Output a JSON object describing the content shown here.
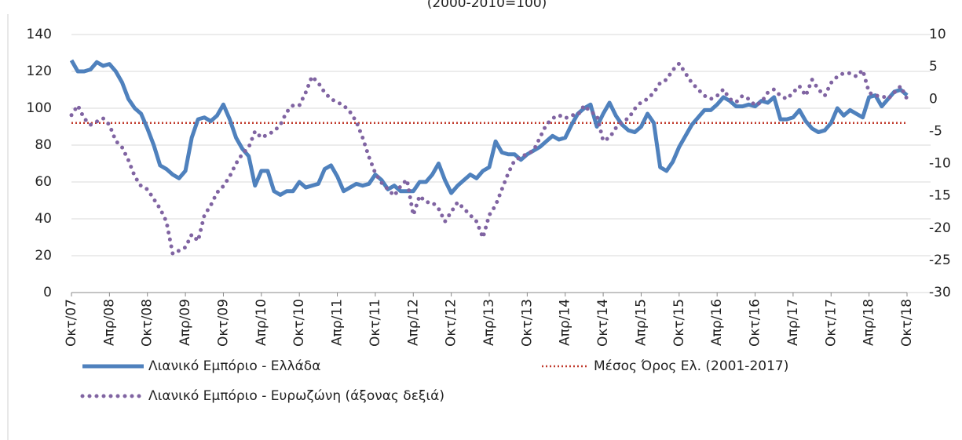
{
  "chart_data": {
    "type": "line",
    "subtitle": "(2000-2010=100)",
    "categories": [
      "Οκτ/07",
      null,
      null,
      null,
      null,
      null,
      "Απρ/08",
      null,
      null,
      null,
      null,
      null,
      "Οκτ/08",
      null,
      null,
      null,
      null,
      null,
      "Απρ/09",
      null,
      null,
      null,
      null,
      null,
      "Οκτ/09",
      null,
      null,
      null,
      null,
      null,
      "Απρ/10",
      null,
      null,
      null,
      null,
      null,
      "Οκτ/10",
      null,
      null,
      null,
      null,
      null,
      "Απρ/11",
      null,
      null,
      null,
      null,
      null,
      "Οκτ/11",
      null,
      null,
      null,
      null,
      null,
      "Απρ/12",
      null,
      null,
      null,
      null,
      null,
      "Οκτ/12",
      null,
      null,
      null,
      null,
      null,
      "Απρ/13",
      null,
      null,
      null,
      null,
      null,
      "Οκτ/13",
      null,
      null,
      null,
      null,
      null,
      "Απρ/14",
      null,
      null,
      null,
      null,
      null,
      "Οκτ/14",
      null,
      null,
      null,
      null,
      null,
      "Απρ/15",
      null,
      null,
      null,
      null,
      null,
      "Οκτ/15",
      null,
      null,
      null,
      null,
      null,
      "Απρ/16",
      null,
      null,
      null,
      null,
      null,
      "Οκτ/16",
      null,
      null,
      null,
      null,
      null,
      "Απρ/17",
      null,
      null,
      null,
      null,
      null,
      "Οκτ/17",
      null,
      null,
      null,
      null,
      null,
      "Απρ/18",
      null,
      null,
      null,
      null,
      null,
      "Οκτ/18"
    ],
    "series": [
      {
        "name": "Λιανικό Εμπόριο  - Ελλάδα",
        "color": "#4f81bd",
        "style": "solid",
        "axis": "y",
        "values": [
          126,
          120,
          120,
          121,
          125,
          123,
          124,
          120,
          114,
          105,
          100,
          97,
          89,
          80,
          69,
          67,
          64,
          62,
          66,
          84,
          94,
          95,
          93,
          96,
          102,
          94,
          84,
          78,
          74,
          58,
          66,
          66,
          55,
          53,
          55,
          55,
          60,
          57,
          58,
          59,
          67,
          69,
          63,
          55,
          57,
          59,
          58,
          59,
          64,
          61,
          56,
          58,
          55,
          55,
          55,
          60,
          60,
          64,
          70,
          61,
          54,
          58,
          61,
          64,
          62,
          66,
          68,
          82,
          76,
          75,
          75,
          72,
          75,
          77,
          79,
          82,
          85,
          83,
          84,
          91,
          97,
          100,
          102,
          90,
          97,
          103,
          96,
          91,
          88,
          87,
          90,
          97,
          92,
          68,
          66,
          71,
          79,
          85,
          91,
          95,
          99,
          99,
          102,
          106,
          104,
          101,
          101,
          102,
          101,
          104,
          103,
          106,
          94,
          94,
          95,
          99,
          93,
          89,
          87,
          88,
          92,
          100,
          96,
          99,
          97,
          95,
          106,
          107,
          101,
          105,
          109,
          110,
          107
        ]
      },
      {
        "name": "Λιανικό Εμπόριο - Ευρωζώνη (άξονας δεξιά)",
        "color": "#8064a2",
        "style": "dots",
        "axis": "y2",
        "values": [
          -2.5,
          -1,
          -3,
          -4,
          -3.5,
          -3,
          -4,
          -6.5,
          -7.5,
          -9.5,
          -12,
          -13.5,
          -14,
          -15.5,
          -17,
          -19,
          -24,
          -23.5,
          -23,
          -21,
          -22,
          -18,
          -16.5,
          -14.5,
          -13.5,
          -12,
          -10,
          -8.5,
          -7.5,
          -5,
          -6,
          -5.5,
          -5,
          -4,
          -2,
          -1,
          -1,
          1,
          3.5,
          2.5,
          1,
          0,
          -0.5,
          -1,
          -2,
          -3.5,
          -6,
          -9,
          -11.5,
          -13,
          -14,
          -15,
          -13.5,
          -12.5,
          -18,
          -15,
          -16,
          -16,
          -17,
          -19,
          -17.5,
          -16,
          -17,
          -18,
          -19,
          -21.5,
          -18,
          -16.5,
          -14,
          -11.5,
          -9.5,
          -9,
          -8.5,
          -8,
          -6,
          -4,
          -3,
          -2.5,
          -3,
          -2.5,
          -2.5,
          -1,
          -2,
          -2.5,
          -6.5,
          -6,
          -4.5,
          -3.5,
          -3,
          -1.5,
          -0.5,
          0,
          1,
          2.5,
          3,
          4.5,
          5.5,
          4,
          2.5,
          1.5,
          0.5,
          0,
          0.5,
          1.5,
          0,
          -0.5,
          0.5,
          0,
          -1,
          -0.5,
          1,
          1.5,
          0.5,
          0,
          1,
          2,
          0.5,
          3,
          1.5,
          0.5,
          2.5,
          3.5,
          4,
          4,
          3.5,
          4.5,
          1,
          0.5,
          0.5,
          0,
          1,
          2,
          0
        ]
      }
    ],
    "reference_lines": [
      {
        "name": "Μέσος Όρος Ελ.  (2001-2017)",
        "value": 92,
        "color": "#c0392b",
        "axis": "y"
      }
    ],
    "ylim": [
      0,
      140
    ],
    "yticks": [
      0,
      20,
      40,
      60,
      80,
      100,
      120,
      140
    ],
    "y2lim": [
      -30,
      10
    ],
    "y2ticks": [
      -30,
      -25,
      -20,
      -15,
      -10,
      -5,
      0,
      5,
      10
    ],
    "grid": true,
    "legend": "bottom"
  }
}
